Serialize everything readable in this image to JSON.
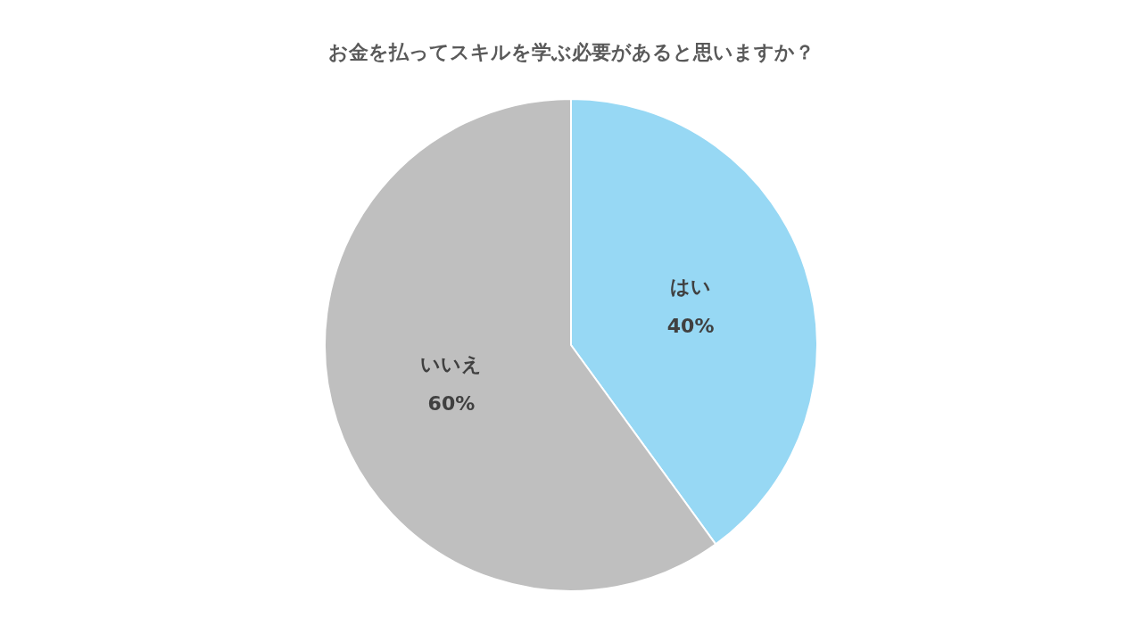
{
  "chart_data": {
    "type": "pie",
    "title": "お金を払ってスキルを学ぶ必要があると思いますか？",
    "categories": [
      "はい",
      "いいえ"
    ],
    "values": [
      40,
      60
    ],
    "colors": [
      "#97d8f4",
      "#bfbfbf"
    ],
    "value_labels": [
      "40%",
      "60%"
    ],
    "legend": false
  }
}
